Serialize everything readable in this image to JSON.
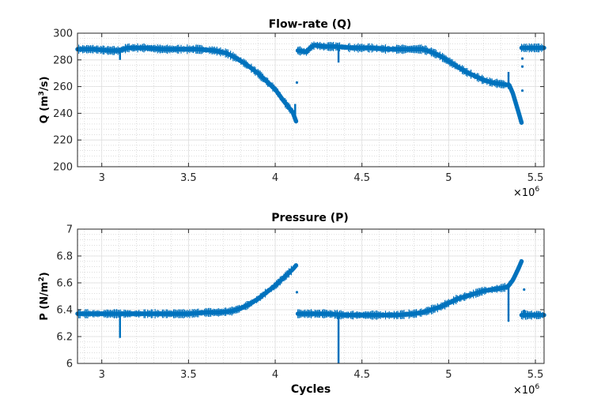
{
  "chart_data": [
    {
      "type": "line",
      "title": "Flow-rate (Q)",
      "ylabel_main": "Q (m",
      "ylabel_sup": "3",
      "ylabel_tail": "/s)",
      "xlabel": "",
      "x_multiplier_base": "×10",
      "x_multiplier_exp": "6",
      "xlim": [
        2.86,
        5.55
      ],
      "ylim": [
        200,
        300
      ],
      "xticks": [
        3,
        3.5,
        4,
        4.5,
        5,
        5.5
      ],
      "xtick_labels": [
        "3",
        "3.5",
        "4",
        "4.5",
        "5",
        "5.5"
      ],
      "yticks": [
        200,
        220,
        240,
        260,
        280,
        300
      ],
      "ytick_labels": [
        "200",
        "220",
        "240",
        "260",
        "280",
        "300"
      ],
      "grid": true,
      "minor_grid": true,
      "color": "#0072BD",
      "series": [
        {
          "x": [
            2.86,
            2.95,
            3.05,
            3.1,
            3.15,
            3.25,
            3.35,
            3.45,
            3.55,
            3.65,
            3.72,
            3.78,
            3.84,
            3.9,
            3.95,
            4.0,
            4.05,
            4.1,
            4.12
          ],
          "y": [
            288,
            288,
            287,
            287,
            289,
            289,
            288,
            288,
            288,
            287,
            285,
            281,
            276,
            270,
            264,
            258,
            249,
            241,
            234
          ]
        },
        {
          "x": [
            4.13,
            4.18,
            4.21,
            4.23,
            4.28,
            4.35,
            4.45,
            4.55,
            4.65,
            4.75,
            4.85,
            4.9,
            4.95,
            5.0,
            5.05,
            5.1,
            5.15,
            5.2,
            5.25,
            5.3,
            5.35,
            5.37,
            5.4,
            5.42
          ],
          "y": [
            287,
            286,
            290,
            291,
            290,
            290,
            289,
            289,
            288,
            288,
            288,
            286,
            283,
            279,
            275,
            271,
            268,
            265,
            263,
            262,
            261,
            255,
            242,
            233
          ]
        },
        {
          "x": [
            5.42,
            5.45,
            5.5,
            5.55
          ],
          "y": [
            289,
            289,
            289,
            289
          ]
        }
      ],
      "spikes": [
        {
          "x": 3.105,
          "from": 288,
          "to": 280
        },
        {
          "x": 4.365,
          "from": 290,
          "to": 278
        },
        {
          "x": 5.345,
          "from": 262,
          "to": 271
        },
        {
          "x": 4.115,
          "from": 236,
          "to": 247
        }
      ],
      "markers": [
        {
          "x": 4.125,
          "y": 263
        },
        {
          "x": 5.425,
          "y": 257
        },
        {
          "x": 5.425,
          "y": 275
        },
        {
          "x": 5.425,
          "y": 281
        }
      ]
    },
    {
      "type": "line",
      "title": "Pressure (P)",
      "ylabel_main": "P (N/m",
      "ylabel_sup": "2",
      "ylabel_tail": ")",
      "xlabel": "Cycles",
      "x_multiplier_base": "×10",
      "x_multiplier_exp": "6",
      "xlim": [
        2.86,
        5.55
      ],
      "ylim": [
        6,
        7
      ],
      "xticks": [
        3,
        3.5,
        4,
        4.5,
        5,
        5.5
      ],
      "xtick_labels": [
        "3",
        "3.5",
        "4",
        "4.5",
        "5",
        "5.5"
      ],
      "yticks": [
        6,
        6.2,
        6.4,
        6.6,
        6.8,
        7
      ],
      "ytick_labels": [
        "6",
        "6.2",
        "6.4",
        "6.6",
        "6.8",
        "7"
      ],
      "grid": true,
      "minor_grid": true,
      "color": "#0072BD",
      "series": [
        {
          "x": [
            2.86,
            3.0,
            3.1,
            3.2,
            3.3,
            3.4,
            3.5,
            3.6,
            3.68,
            3.75,
            3.8,
            3.85,
            3.9,
            3.95,
            4.0,
            4.05,
            4.1,
            4.12
          ],
          "y": [
            6.37,
            6.37,
            6.37,
            6.37,
            6.37,
            6.37,
            6.37,
            6.38,
            6.38,
            6.39,
            6.41,
            6.44,
            6.48,
            6.53,
            6.58,
            6.64,
            6.7,
            6.73
          ]
        },
        {
          "x": [
            4.13,
            4.2,
            4.3,
            4.4,
            4.5,
            4.6,
            4.7,
            4.8,
            4.85,
            4.9,
            4.95,
            5.0,
            5.05,
            5.1,
            5.15,
            5.2,
            5.25,
            5.3,
            5.34,
            5.37,
            5.4,
            5.42
          ],
          "y": [
            6.37,
            6.37,
            6.37,
            6.36,
            6.36,
            6.36,
            6.36,
            6.37,
            6.38,
            6.4,
            6.42,
            6.45,
            6.48,
            6.5,
            6.52,
            6.54,
            6.55,
            6.56,
            6.57,
            6.62,
            6.7,
            6.76
          ]
        },
        {
          "x": [
            5.42,
            5.45,
            5.5,
            5.55
          ],
          "y": [
            6.36,
            6.36,
            6.36,
            6.36
          ]
        }
      ],
      "spikes": [
        {
          "x": 3.105,
          "from": 6.38,
          "to": 6.19
        },
        {
          "x": 4.365,
          "from": 6.37,
          "to": 6.0
        },
        {
          "x": 5.345,
          "from": 6.57,
          "to": 6.31
        },
        {
          "x": 5.435,
          "from": 6.4,
          "to": 6.34
        }
      ],
      "markers": [
        {
          "x": 4.125,
          "y": 6.53
        },
        {
          "x": 5.435,
          "y": 6.55
        }
      ]
    }
  ]
}
